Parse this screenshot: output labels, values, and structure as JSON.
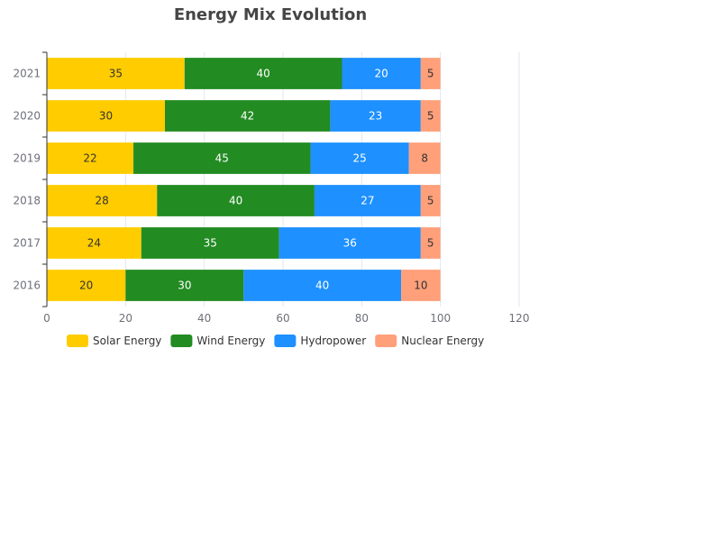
{
  "chart_data": {
    "type": "bar",
    "orientation": "horizontal",
    "stacked": true,
    "title": "Energy Mix Evolution",
    "xlabel": "",
    "ylabel": "",
    "categories": [
      "2016",
      "2017",
      "2018",
      "2019",
      "2020",
      "2021"
    ],
    "xlim": [
      0,
      120
    ],
    "x_ticks": [
      0,
      20,
      40,
      60,
      80,
      100,
      120
    ],
    "grid": true,
    "legend_position": "bottom-left",
    "series": [
      {
        "name": "Solar Energy",
        "color": "#ffcc00",
        "label_color": "#333333",
        "values": [
          20,
          24,
          28,
          22,
          30,
          35
        ]
      },
      {
        "name": "Wind Energy",
        "color": "#228b22",
        "label_color": "#ffffff",
        "values": [
          30,
          35,
          40,
          45,
          42,
          40
        ]
      },
      {
        "name": "Hydropower",
        "color": "#1e90ff",
        "label_color": "#ffffff",
        "values": [
          40,
          36,
          27,
          25,
          23,
          20
        ]
      },
      {
        "name": "Nuclear Energy",
        "color": "#ffa07a",
        "label_color": "#333333",
        "values": [
          10,
          5,
          5,
          8,
          5,
          5
        ]
      }
    ]
  }
}
